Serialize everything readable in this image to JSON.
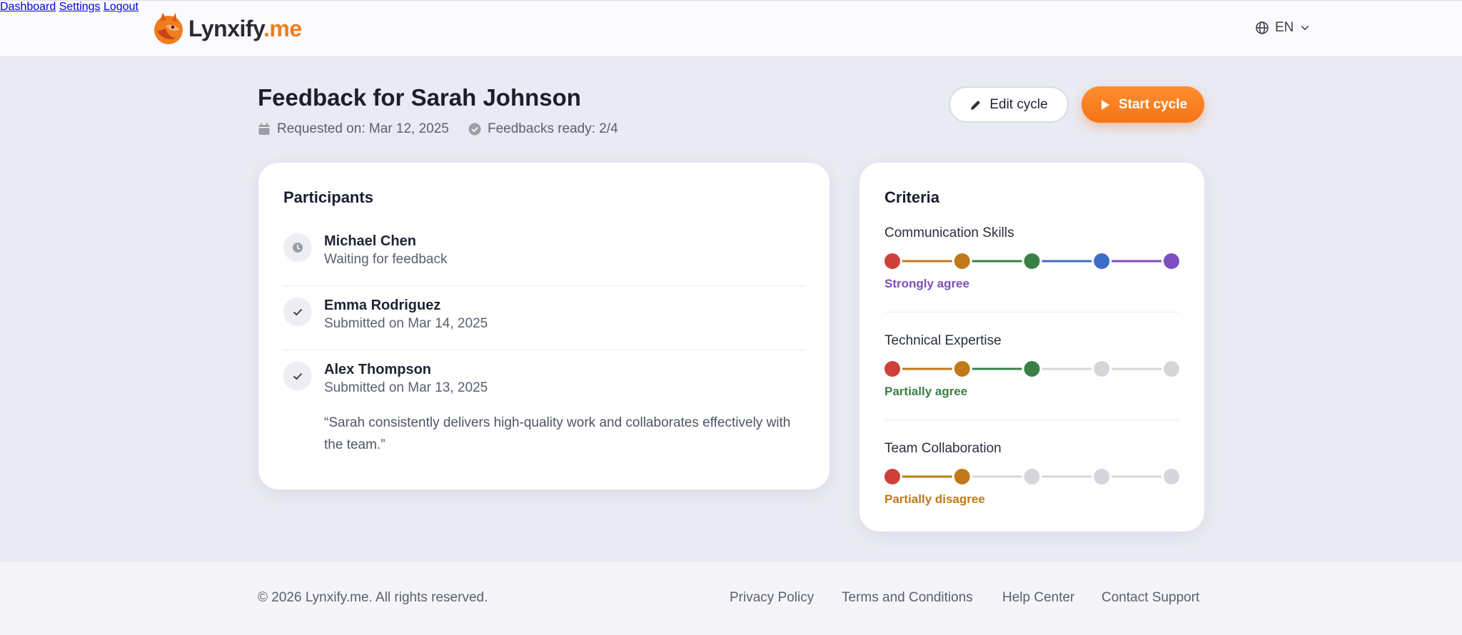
{
  "header": {
    "logo_part1": "Lynxify",
    "logo_part2": ".me",
    "nav": [
      "Dashboard",
      "Settings",
      "Logout"
    ],
    "language": "EN"
  },
  "page": {
    "title": "Feedback for Sarah Johnson",
    "requested_on": "Requested on: Mar 12, 2025",
    "feedbacks_ready": "Feedbacks ready: 2/4",
    "edit_button": "Edit cycle",
    "start_button": "Start cycle"
  },
  "participants": {
    "title": "Participants",
    "items": [
      {
        "name": "Michael Chen",
        "status": "Waiting for feedback",
        "icon": "clock-icon"
      },
      {
        "name": "Emma Rodriguez",
        "status": "Submitted on Mar 14, 2025",
        "icon": "check-icon"
      },
      {
        "name": "Alex Thompson",
        "status": "Submitted on Mar 13, 2025",
        "icon": "check-icon",
        "quote": "“Sarah consistently delivers high-quality work and collaborates effectively with the team.”"
      }
    ]
  },
  "criteria": {
    "title": "Criteria",
    "scale_colors": [
      "#d0403a",
      "#c07a1a",
      "#3a8046",
      "#3d6cc8",
      "#7d4fc0"
    ],
    "inactive_color": "#d4d6dc",
    "items": [
      {
        "name": "Communication Skills",
        "level": 5,
        "label": "Strongly agree",
        "label_color": "#7d4fb8"
      },
      {
        "name": "Technical Expertise",
        "level": 3,
        "label": "Partially agree",
        "label_color": "#3a8046"
      },
      {
        "name": "Team Collaboration",
        "level": 2,
        "label": "Partially disagree",
        "label_color": "#c07a1a"
      }
    ]
  },
  "footer": {
    "copyright": "© 2026 Lynxify.me. All rights reserved.",
    "links": [
      "Privacy Policy",
      "Terms and Conditions",
      "Help Center",
      "Contact Support"
    ]
  },
  "colors": {
    "accent": "#f47418",
    "background": "#e9eaf3"
  }
}
